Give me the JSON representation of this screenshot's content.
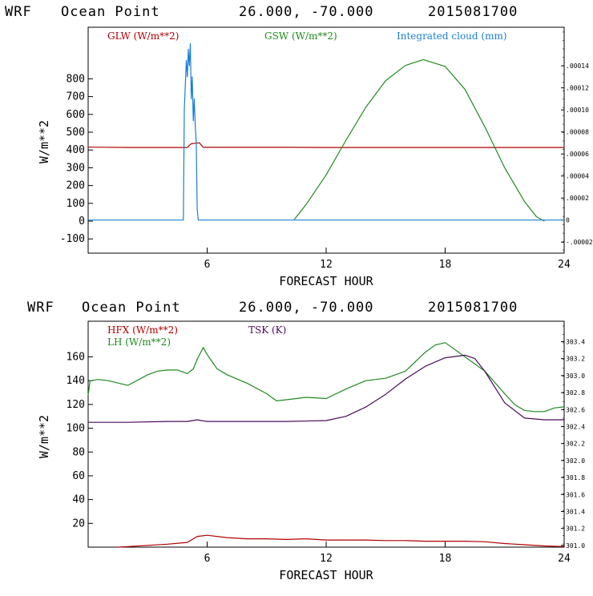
{
  "colors": {
    "glw": "#b00000",
    "gsw": "#1f8a1f",
    "cloud": "#1a7fd6",
    "hfx": "#b00000",
    "lh": "#1f8a1f",
    "tsk": "#4b0a5a",
    "frame": "#000000"
  },
  "chart_data": [
    {
      "type": "line",
      "header": {
        "model": "WRF",
        "location": "Ocean Point",
        "coords": "26.000, -70.000",
        "date": "2015081700"
      },
      "xlabel": "FORECAST HOUR",
      "ylabel": "W/m**2",
      "xlim": [
        0,
        24
      ],
      "ylim": [
        -180,
        1090
      ],
      "x_ticks": [
        "6",
        "12",
        "18",
        "24"
      ],
      "y_ticks": [
        "-100",
        "0",
        "100",
        "200",
        "300",
        "400",
        "500",
        "600",
        "700",
        "800"
      ],
      "right_ylim": [
        -3e-05,
        0.000175
      ],
      "right_ticks": [
        ".00014",
        ".00012",
        ".00010",
        ".00008",
        ".00006",
        ".00004",
        ".00002",
        "0",
        "-.00002"
      ],
      "legend": [
        "GLW (W/m**2)",
        "GSW (W/m**2)",
        "Integrated cloud (mm)"
      ],
      "series": [
        {
          "name": "GLW (W/m**2)",
          "axis": "left",
          "x": [
            0,
            2.2,
            5,
            5.1,
            5.2,
            5.4,
            5.6,
            5.61,
            5.8,
            6,
            8,
            10,
            12,
            14,
            16,
            18,
            20,
            22,
            24
          ],
          "values": [
            416,
            414,
            414,
            425,
            435,
            438,
            440,
            440,
            415,
            415,
            415,
            415,
            414,
            414,
            414,
            414,
            414,
            414,
            414
          ]
        },
        {
          "name": "GSW (W/m**2)",
          "axis": "left",
          "x": [
            10.4,
            11,
            12,
            13,
            14,
            15,
            16,
            16.9,
            18,
            19,
            20,
            21,
            22,
            22.6,
            23
          ],
          "values": [
            10,
            95,
            260,
            455,
            640,
            790,
            875,
            908,
            870,
            740,
            530,
            300,
            110,
            25,
            0
          ]
        },
        {
          "name": "Integrated cloud (mm)",
          "axis": "right",
          "x": [
            0,
            4.8,
            4.85,
            4.95,
            5.0,
            5.05,
            5.1,
            5.15,
            5.2,
            5.25,
            5.3,
            5.35,
            5.4,
            5.45,
            5.5,
            5.55,
            24
          ],
          "values": [
            0,
            0,
            0.0001,
            0.000145,
            0.00013,
            0.000155,
            0.00014,
            0.00016,
            0.00011,
            0.00013,
            9e-05,
            0.00011,
            8.5e-05,
            7e-05,
            1e-05,
            0,
            0
          ]
        }
      ]
    },
    {
      "type": "line",
      "header": {
        "model": "WRF",
        "location": "Ocean Point",
        "coords": "26.000, -70.000",
        "date": "2015081700"
      },
      "xlabel": "FORECAST HOUR",
      "ylabel": "W/m**2",
      "xlim": [
        0,
        24
      ],
      "ylim": [
        0,
        190
      ],
      "x_ticks": [
        "6",
        "12",
        "18",
        "24"
      ],
      "y_ticks": [
        "20",
        "40",
        "60",
        "80",
        "100",
        "120",
        "140",
        "160"
      ],
      "right_ylim": [
        300.98,
        303.64
      ],
      "right_ticks": [
        "303.4",
        "303.2",
        "303.0",
        "302.8",
        "302.6",
        "302.4",
        "302.2",
        "302.0",
        "301.8",
        "301.6",
        "301.4",
        "301.2",
        "301.0"
      ],
      "legend": [
        "HFX (W/m**2)",
        "LH (W/m**2)",
        "TSK (K)"
      ],
      "series": [
        {
          "name": "HFX (W/m**2)",
          "axis": "left",
          "x": [
            1.5,
            2,
            3,
            4,
            5,
            5.5,
            6,
            7,
            8,
            9,
            10,
            11,
            12,
            13,
            14,
            15,
            16,
            17,
            18,
            19,
            20,
            21,
            22,
            23,
            24
          ],
          "values": [
            0,
            0.5,
            1.5,
            2.5,
            4,
            9,
            10,
            8,
            7,
            7,
            6.5,
            7,
            6,
            6,
            6,
            5.5,
            5.5,
            5,
            5,
            5,
            4.5,
            3,
            2,
            1,
            0.5
          ],
          "visible_from": 1.5
        },
        {
          "name": "LH (W/m**2)",
          "axis": "left",
          "x": [
            0,
            0.1,
            0.5,
            1,
            2,
            3,
            3.5,
            4,
            4.5,
            5,
            5.3,
            5.5,
            5.8,
            6,
            6.5,
            7,
            8,
            9,
            9.5,
            10,
            11,
            12,
            13,
            14,
            15,
            16,
            17,
            17.5,
            18,
            19,
            20,
            21,
            21.5,
            22,
            22.5,
            23,
            23.5,
            24
          ],
          "values": [
            128,
            140,
            141,
            140,
            136,
            145,
            148,
            149,
            149,
            146,
            150,
            158,
            168,
            162,
            150,
            145,
            138,
            129,
            123,
            124,
            126,
            125,
            133,
            140,
            142,
            148,
            164,
            170,
            172,
            160,
            148,
            129,
            120,
            115,
            114,
            114,
            117,
            118
          ]
        },
        {
          "name": "TSK (K)",
          "axis": "right",
          "x": [
            0,
            2,
            4,
            5,
            5.5,
            5.7,
            6,
            8,
            10,
            12,
            13,
            14,
            15,
            16,
            17,
            18,
            19,
            19.5,
            20,
            21,
            22,
            23,
            24
          ],
          "values": [
            302.45,
            302.45,
            302.46,
            302.46,
            302.48,
            302.47,
            302.46,
            302.46,
            302.46,
            302.47,
            302.52,
            302.63,
            302.78,
            302.96,
            303.11,
            303.21,
            303.24,
            303.2,
            303.05,
            302.68,
            302.5,
            302.48,
            302.48
          ]
        }
      ]
    }
  ]
}
